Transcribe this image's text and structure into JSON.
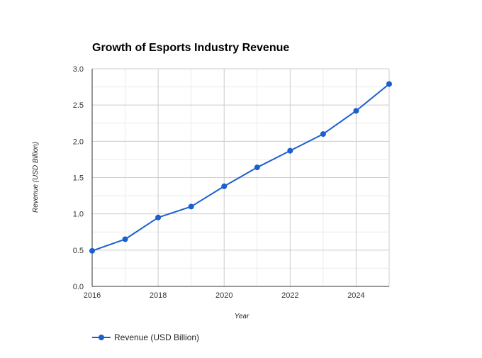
{
  "chart_data": {
    "type": "line",
    "title": "Growth of Esports Industry Revenue",
    "xlabel": "Year",
    "ylabel": "Revenue (USD Billion)",
    "x": [
      2016,
      2017,
      2018,
      2019,
      2020,
      2021,
      2022,
      2023,
      2024,
      2025
    ],
    "series": [
      {
        "name": "Revenue (USD Billion)",
        "values": [
          0.49,
          0.65,
          0.95,
          1.1,
          1.38,
          1.64,
          1.87,
          2.1,
          2.42,
          2.79
        ]
      }
    ],
    "xlim": [
      2016,
      2025
    ],
    "ylim": [
      0,
      3.0
    ],
    "x_ticks": [
      "2016",
      "2018",
      "2020",
      "2022",
      "2024"
    ],
    "y_ticks": [
      "0.0",
      "0.5",
      "1.0",
      "1.5",
      "2.0",
      "2.5",
      "3.0"
    ],
    "grid": true,
    "legend_position": "bottom-left",
    "colors": {
      "series": "#1a5fd0",
      "grid_major": "#cccccc",
      "grid_minor": "#ebebeb",
      "axis": "#333333"
    }
  }
}
